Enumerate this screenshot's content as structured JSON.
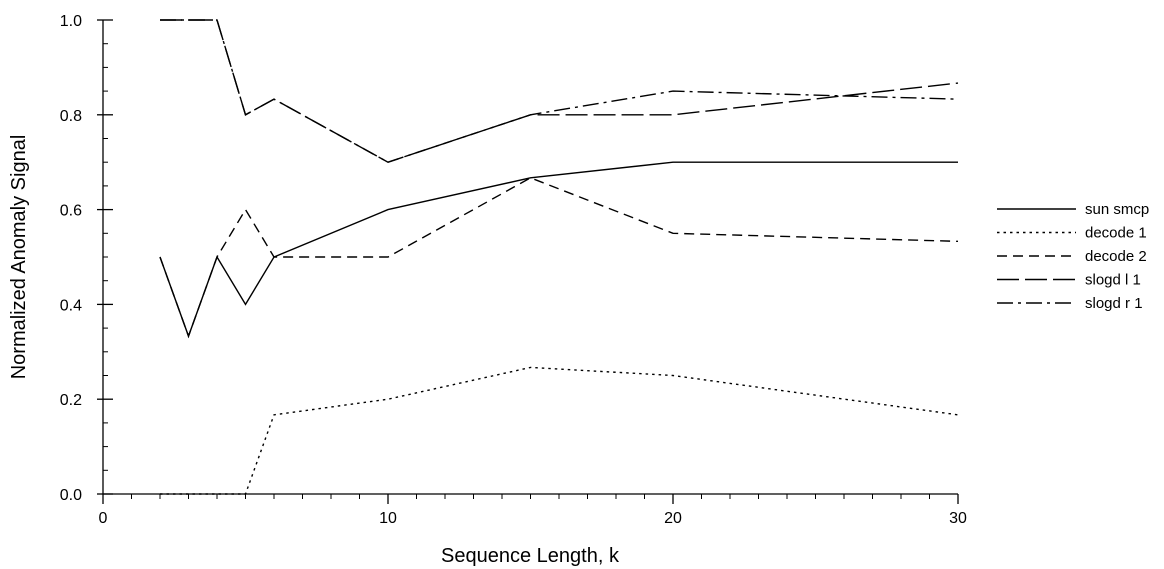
{
  "chart_data": {
    "type": "line",
    "xlabel": "Sequence Length, k",
    "ylabel": "Normalized Anomaly Signal",
    "xlim": [
      0,
      30
    ],
    "ylim": [
      0,
      1.0
    ],
    "x_ticks": [
      0,
      10,
      20,
      30
    ],
    "x_tick_labels": [
      "0",
      "10",
      "20",
      "30"
    ],
    "y_ticks": [
      0.0,
      0.2,
      0.4,
      0.6,
      0.8,
      1.0
    ],
    "y_tick_labels": [
      "0.0",
      "0.2",
      "0.4",
      "0.6",
      "0.8",
      "1.0"
    ],
    "grid": false,
    "legend_position": "right",
    "x": [
      2,
      3,
      4,
      5,
      6,
      10,
      15,
      20,
      30
    ],
    "series": [
      {
        "name": "sun smcp",
        "dash": "solid",
        "values": [
          0.5,
          0.333,
          0.5,
          0.4,
          0.5,
          0.6,
          0.667,
          0.7,
          0.7
        ]
      },
      {
        "name": "decode 1",
        "dash": "dotted",
        "values": [
          0,
          0,
          0,
          0,
          0.167,
          0.2,
          0.267,
          0.25,
          0.167
        ]
      },
      {
        "name": "decode 2",
        "dash": "dashed",
        "values": [
          0.5,
          0.333,
          0.5,
          0.6,
          0.5,
          0.5,
          0.667,
          0.55,
          0.533
        ]
      },
      {
        "name": "slogd l 1",
        "dash": "longdash",
        "values": [
          1.0,
          1.0,
          1.0,
          0.8,
          0.833,
          0.7,
          0.8,
          0.8,
          0.867
        ]
      },
      {
        "name": "slogd r 1",
        "dash": "dashdot",
        "values": [
          1.0,
          1.0,
          1.0,
          0.8,
          0.833,
          0.7,
          0.8,
          0.85,
          0.833
        ]
      }
    ]
  }
}
